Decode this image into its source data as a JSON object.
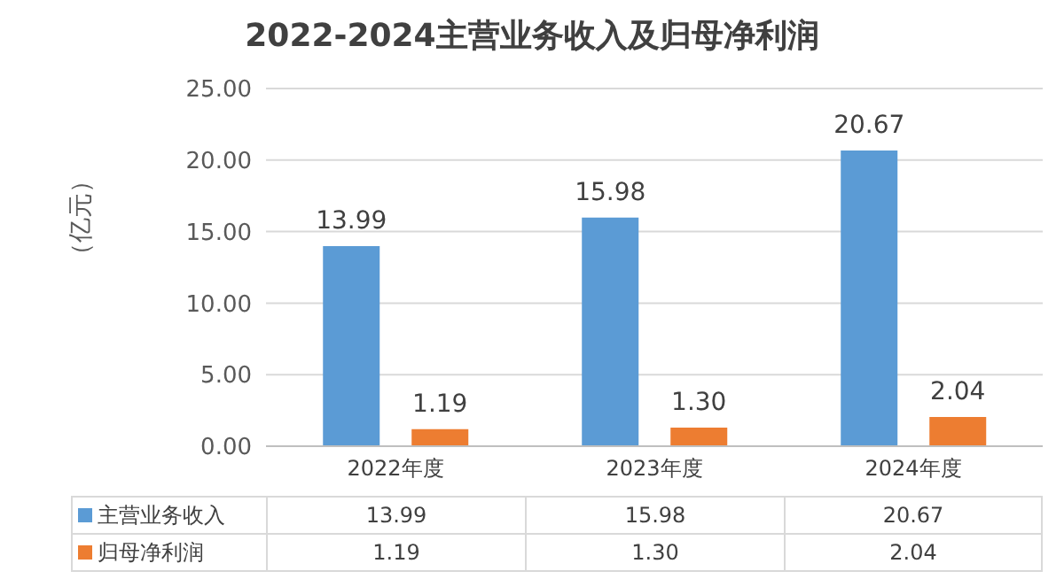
{
  "chart_data": {
    "type": "bar",
    "title": "2022-2024主营业务收入及归母净利润",
    "ylabel": "（亿元）",
    "categories": [
      "2022年度",
      "2023年度",
      "2024年度"
    ],
    "series": [
      {
        "name": "主营业务收入",
        "color": "#5b9bd5",
        "values": [
          13.99,
          15.98,
          20.67
        ],
        "value_labels": [
          "13.99",
          "15.98",
          "20.67"
        ]
      },
      {
        "name": "归母净利润",
        "color": "#ed7d31",
        "values": [
          1.19,
          1.3,
          2.04
        ],
        "value_labels": [
          "1.19",
          "1.30",
          "2.04"
        ]
      }
    ],
    "ylim": [
      0,
      25
    ],
    "yticks": [
      {
        "value": 0,
        "label": "0.00"
      },
      {
        "value": 5,
        "label": "5.00"
      },
      {
        "value": 10,
        "label": "10.00"
      },
      {
        "value": 15,
        "label": "15.00"
      },
      {
        "value": 20,
        "label": "20.00"
      },
      {
        "value": 25,
        "label": "25.00"
      }
    ],
    "grid": "y",
    "legend": "bottom"
  }
}
